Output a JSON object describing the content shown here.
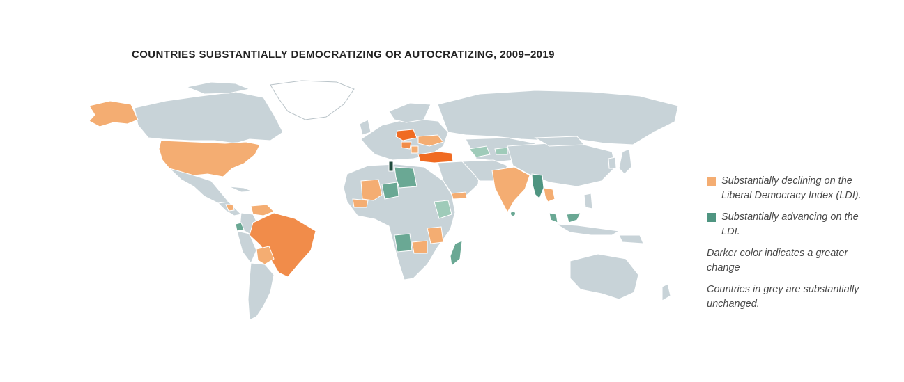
{
  "title": "COUNTRIES SUBSTANTIALLY DEMOCRATIZING OR AUTOCRATIZING, 2009–2019",
  "legend": {
    "declining": {
      "label": "Substantially declining on the Liberal Democracy Index (LDI).",
      "color": "#f4ad72"
    },
    "advancing": {
      "label": "Substantially advancing on the LDI.",
      "color": "#4f9581"
    },
    "note_darker": "Darker color indicates a greater change",
    "note_grey": "Countries in grey are substantially unchanged."
  },
  "colors": {
    "unchanged": "#c8d3d8",
    "declining_light": "#f4ad72",
    "declining_dark": "#f06b22",
    "advancing_light": "#9fcbb9",
    "advancing_dark": "#1f4a3c"
  }
}
